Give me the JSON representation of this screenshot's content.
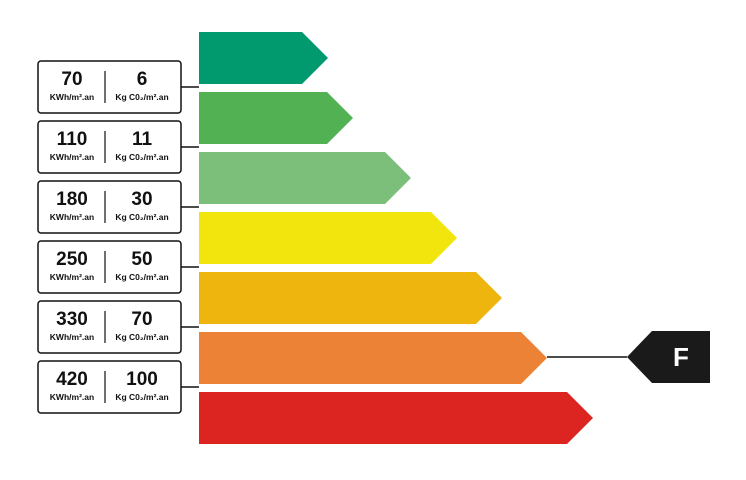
{
  "bar_colors": [
    "#009a6e",
    "#52b153",
    "#7bbf7b",
    "#f2e50e",
    "#efb50f",
    "#ec8236",
    "#dc2521"
  ],
  "thresholds": [
    {
      "energy": "70",
      "energy_unit": "KWh/m².an",
      "co2": "6",
      "co2_unit": "Kg C0₂/m².an"
    },
    {
      "energy": "110",
      "energy_unit": "KWh/m².an",
      "co2": "11",
      "co2_unit": "Kg C0₂/m².an"
    },
    {
      "energy": "180",
      "energy_unit": "KWh/m².an",
      "co2": "30",
      "co2_unit": "Kg C0₂/m².an"
    },
    {
      "energy": "250",
      "energy_unit": "KWh/m².an",
      "co2": "50",
      "co2_unit": "Kg C0₂/m².an"
    },
    {
      "energy": "330",
      "energy_unit": "KWh/m².an",
      "co2": "70",
      "co2_unit": "Kg C0₂/m².an"
    },
    {
      "energy": "420",
      "energy_unit": "KWh/m².an",
      "co2": "100",
      "co2_unit": "Kg C0₂/m².an"
    }
  ],
  "rating": "F"
}
